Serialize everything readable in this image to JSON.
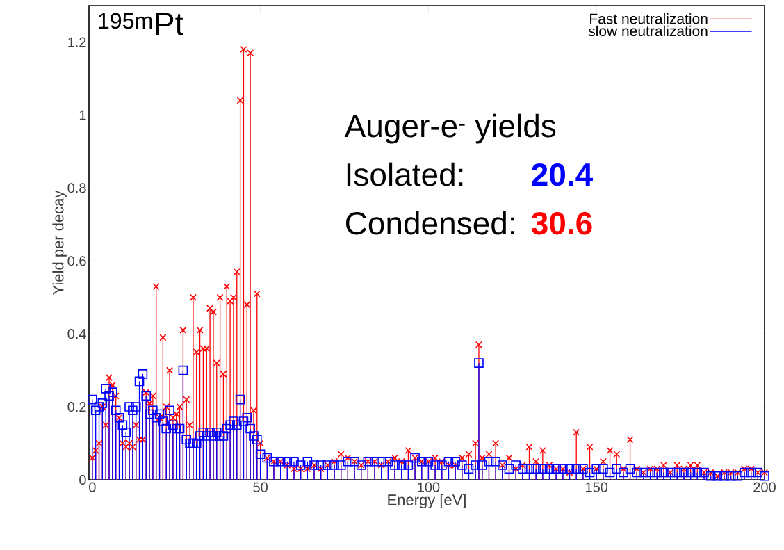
{
  "chart_data": {
    "type": "lollipop",
    "xlabel": "Energy [eV]",
    "ylabel": "Yield per decay",
    "annotations": [
      "$^{195m}$Pt",
      "Auger-e$^{-}$ yields",
      "Isolated:",
      "20.4",
      "Condensed:",
      "30.6"
    ],
    "x": [
      0,
      1,
      2,
      3,
      4,
      5,
      6,
      7,
      8,
      9,
      10,
      11,
      12,
      13,
      14,
      15,
      16,
      17,
      18,
      19,
      20,
      21,
      22,
      23,
      24,
      25,
      26,
      27,
      28,
      29,
      30,
      31,
      32,
      33,
      34,
      35,
      36,
      37,
      38,
      39,
      40,
      41,
      42,
      43,
      44,
      45,
      46,
      47,
      48,
      49,
      50,
      52,
      54,
      56,
      58,
      60,
      62,
      64,
      66,
      68,
      70,
      72,
      74,
      76,
      78,
      80,
      82,
      84,
      86,
      88,
      90,
      92,
      94,
      96,
      98,
      100,
      102,
      104,
      106,
      108,
      110,
      112,
      114,
      115,
      116,
      118,
      120,
      122,
      124,
      126,
      128,
      130,
      132,
      134,
      136,
      138,
      140,
      142,
      144,
      146,
      148,
      150,
      152,
      154,
      156,
      158,
      160,
      162,
      164,
      166,
      168,
      170,
      172,
      174,
      176,
      178,
      180,
      182,
      184,
      186,
      188,
      190,
      192,
      194,
      196,
      198,
      200
    ],
    "series": [
      {
        "name": "Fast neutralization",
        "color": "#ff0000",
        "marker": "cross",
        "values": [
          0.06,
          0.08,
          0.1,
          0.2,
          0.15,
          0.28,
          0.26,
          0.23,
          0.17,
          0.1,
          0.09,
          0.1,
          0.09,
          0.15,
          0.11,
          0.11,
          0.24,
          0.21,
          0.23,
          0.53,
          0.17,
          0.39,
          0.2,
          0.3,
          0.17,
          0.18,
          0.2,
          0.41,
          0.22,
          0.15,
          0.5,
          0.35,
          0.41,
          0.36,
          0.36,
          0.47,
          0.46,
          0.32,
          0.5,
          0.29,
          0.53,
          0.49,
          0.5,
          0.57,
          1.04,
          1.18,
          0.48,
          1.17,
          0.19,
          0.51,
          0.1,
          0.06,
          0.05,
          0.05,
          0.04,
          0.03,
          0.03,
          0.03,
          0.04,
          0.03,
          0.04,
          0.05,
          0.07,
          0.06,
          0.05,
          0.04,
          0.05,
          0.05,
          0.04,
          0.05,
          0.06,
          0.05,
          0.08,
          0.06,
          0.05,
          0.05,
          0.06,
          0.05,
          0.04,
          0.04,
          0.06,
          0.07,
          0.1,
          0.37,
          0.06,
          0.07,
          0.1,
          0.04,
          0.06,
          0.03,
          0.04,
          0.09,
          0.05,
          0.08,
          0.04,
          0.03,
          0.03,
          0.02,
          0.13,
          0.03,
          0.09,
          0.03,
          0.05,
          0.08,
          0.07,
          0.03,
          0.11,
          0.03,
          0.02,
          0.03,
          0.03,
          0.04,
          0.02,
          0.04,
          0.03,
          0.04,
          0.04,
          0.02,
          0.02,
          0.01,
          0.02,
          0.02,
          0.02,
          0.03,
          0.03,
          0.02,
          0.02
        ]
      },
      {
        "name": "slow neutralization",
        "color": "#0000ff",
        "marker": "square",
        "values": [
          0.22,
          0.19,
          0.2,
          0.21,
          0.25,
          0.23,
          0.24,
          0.19,
          0.17,
          0.15,
          0.13,
          0.2,
          0.19,
          0.2,
          0.27,
          0.29,
          0.23,
          0.18,
          0.19,
          0.17,
          0.18,
          0.16,
          0.14,
          0.19,
          0.15,
          0.14,
          0.14,
          0.3,
          0.11,
          0.1,
          0.1,
          0.1,
          0.12,
          0.13,
          0.12,
          0.13,
          0.12,
          0.13,
          0.12,
          0.12,
          0.14,
          0.15,
          0.16,
          0.15,
          0.22,
          0.16,
          0.17,
          0.14,
          0.12,
          0.11,
          0.07,
          0.06,
          0.05,
          0.05,
          0.05,
          0.05,
          0.04,
          0.05,
          0.04,
          0.04,
          0.04,
          0.04,
          0.04,
          0.05,
          0.05,
          0.04,
          0.05,
          0.05,
          0.05,
          0.05,
          0.04,
          0.04,
          0.04,
          0.06,
          0.05,
          0.05,
          0.04,
          0.04,
          0.05,
          0.05,
          0.04,
          0.03,
          0.04,
          0.32,
          0.04,
          0.05,
          0.05,
          0.04,
          0.03,
          0.04,
          0.03,
          0.03,
          0.03,
          0.03,
          0.03,
          0.03,
          0.03,
          0.03,
          0.03,
          0.03,
          0.02,
          0.03,
          0.03,
          0.02,
          0.03,
          0.02,
          0.03,
          0.02,
          0.02,
          0.02,
          0.02,
          0.02,
          0.02,
          0.02,
          0.02,
          0.02,
          0.02,
          0.02,
          0.01,
          0.01,
          0.01,
          0.01,
          0.01,
          0.02,
          0.02,
          0.02,
          0.01
        ]
      }
    ],
    "xlim": [
      -1,
      200
    ],
    "xticks": [
      0,
      50,
      100,
      150,
      200
    ],
    "ylim": [
      0,
      1.3
    ],
    "yticks": [
      0,
      0.2,
      0.4,
      0.6,
      0.8,
      1,
      1.2
    ],
    "legend": "top right"
  }
}
